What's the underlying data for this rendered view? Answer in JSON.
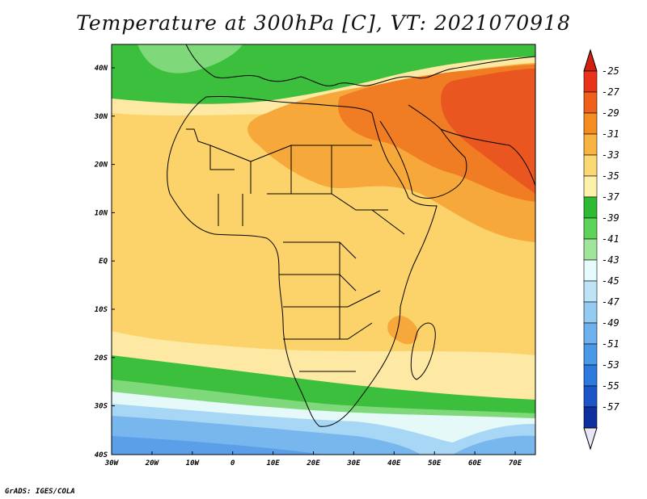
{
  "title": "Temperature at 300hPa [C], VT: 2021070918",
  "credit": "GrADS: IGES/COLA",
  "axes": {
    "lat_labels": [
      "40N",
      "30N",
      "20N",
      "10N",
      "EQ",
      "10S",
      "20S",
      "30S",
      "40S"
    ],
    "lon_labels": [
      "30W",
      "20W",
      "10W",
      "0",
      "10E",
      "20E",
      "30E",
      "40E",
      "50E",
      "60E",
      "70E"
    ]
  },
  "colorbar": {
    "labels": [
      "-25",
      "-27",
      "-29",
      "-31",
      "-33",
      "-35",
      "-37",
      "-39",
      "-41",
      "-43",
      "-45",
      "-47",
      "-49",
      "-51",
      "-53",
      "-55",
      "-57"
    ],
    "colors": [
      "#e8331a",
      "#f0601c",
      "#f58c1f",
      "#f9b340",
      "#fbd874",
      "#fdf0a8",
      "#2fba33",
      "#5ed35a",
      "#9fe69b",
      "#e6fbfb",
      "#bde3f7",
      "#94cbf3",
      "#6db2ee",
      "#4a98e8",
      "#2d79dd",
      "#1b55c8",
      "#0e2f9e"
    ],
    "top_triangle_color": "#d4210f",
    "bottom_triangle_color": "#e8e6f7"
  },
  "fill_colors": {
    "ocean_base": "#fde9a3",
    "warm_band": "#fbd36a",
    "orange": "#f7a83a",
    "dark_orange": "#f07c24",
    "red_orange": "#ea5620",
    "green": "#3cbf3c",
    "light_green": "#7fd97a",
    "pale_cyan": "#e4f9f8",
    "light_blue": "#a8d6f5",
    "blue": "#78b6ee",
    "mid_blue": "#5b9fe9",
    "border": "#000000"
  }
}
